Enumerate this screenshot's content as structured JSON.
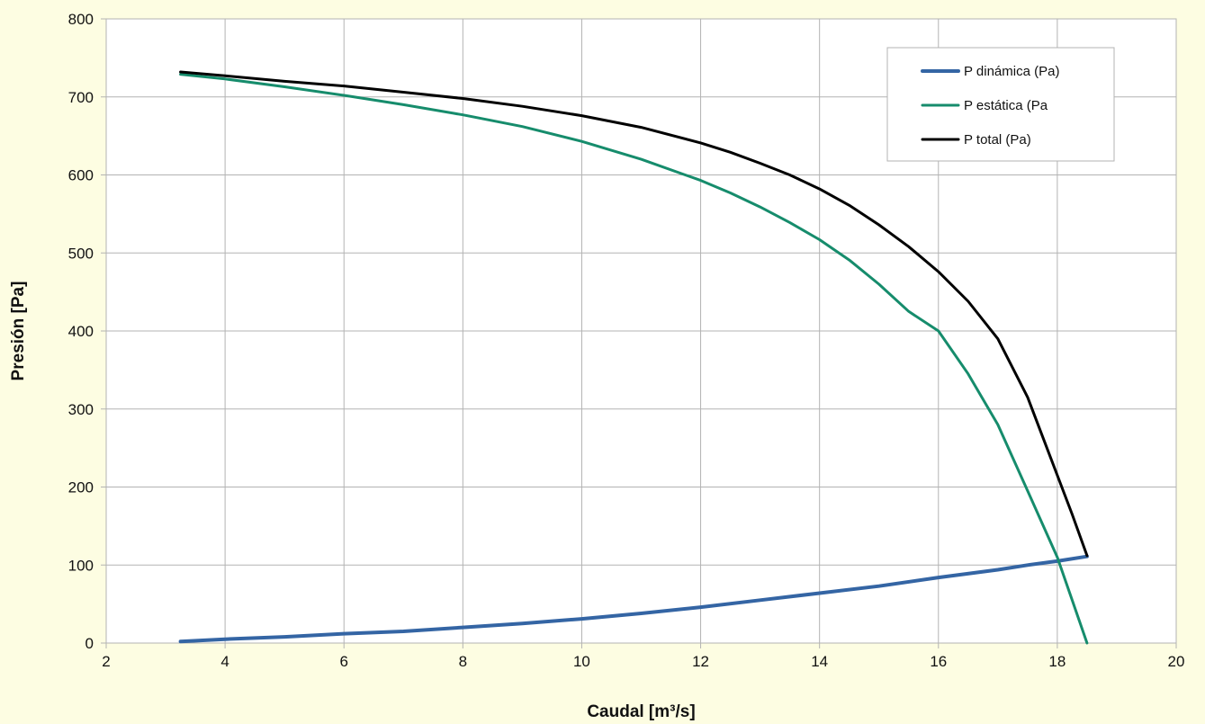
{
  "chart_data": {
    "type": "line",
    "xlabel": "Caudal [m³/s]",
    "ylabel": "Presión [Pa]",
    "xlim": [
      2,
      20
    ],
    "ylim": [
      0,
      800
    ],
    "xticks": [
      2,
      4,
      6,
      8,
      10,
      12,
      14,
      16,
      18,
      20
    ],
    "yticks": [
      0,
      100,
      200,
      300,
      400,
      500,
      600,
      700,
      800
    ],
    "grid": true,
    "legend_position": "top-right",
    "colors": {
      "background": "#fdfde2",
      "plot_area": "#ffffff",
      "grid": "#b3b3b3"
    },
    "series": [
      {
        "name": "P dinámica (Pa)",
        "color": "#3465a4",
        "x": [
          3.25,
          4,
          5,
          6,
          7,
          8,
          9,
          10,
          11,
          12,
          13,
          14,
          15,
          16,
          17,
          17.5,
          18,
          18.5
        ],
        "y": [
          2,
          5,
          8,
          12,
          15,
          20,
          25,
          31,
          38,
          46,
          55,
          64,
          73,
          84,
          94,
          100,
          105,
          111
        ]
      },
      {
        "name": "P estática (Pa",
        "color": "#168c6c",
        "x": [
          3.25,
          4,
          5,
          6,
          7,
          8,
          9,
          10,
          11,
          12,
          12.5,
          13,
          13.5,
          14,
          14.5,
          15,
          15.5,
          16,
          16.5,
          17,
          17.5,
          18,
          18.25,
          18.5
        ],
        "y": [
          729,
          723,
          713,
          702,
          690,
          677,
          662,
          643,
          620,
          593,
          577,
          559,
          539,
          517,
          491,
          460,
          425,
          400,
          345,
          280,
          195,
          110,
          55,
          0
        ]
      },
      {
        "name": "P total (Pa)",
        "color": "#000000",
        "x": [
          3.25,
          4,
          5,
          6,
          7,
          8,
          9,
          10,
          11,
          12,
          12.5,
          13,
          13.5,
          14,
          14.5,
          15,
          15.5,
          16,
          16.5,
          17,
          17.5,
          18,
          18.25,
          18.5
        ],
        "y": [
          732,
          727,
          720,
          714,
          706,
          698,
          688,
          676,
          661,
          641,
          629,
          615,
          600,
          582,
          561,
          536,
          508,
          476,
          438,
          390,
          315,
          215,
          165,
          112
        ]
      }
    ]
  }
}
